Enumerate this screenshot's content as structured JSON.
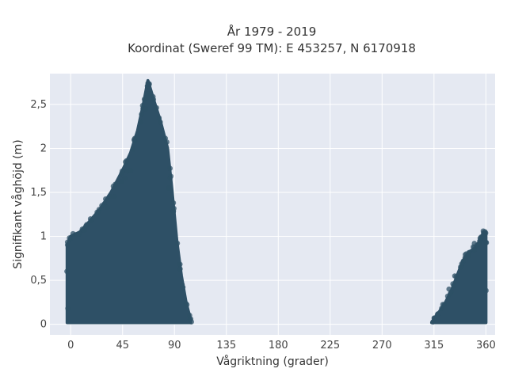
{
  "chart_data": {
    "type": "scatter",
    "title": [
      "År 1979 - 2019",
      "Koordinat (Sweref 99 TM): E 453257, N 6170918"
    ],
    "xlabel": "Vågriktning (grader)",
    "ylabel": "Signifikant våghöjd (m)",
    "xlim": [
      -18,
      368
    ],
    "ylim": [
      -0.12,
      2.85
    ],
    "grid": true,
    "xticks": [
      0,
      45,
      90,
      135,
      180,
      225,
      270,
      315,
      360
    ],
    "xtick_labels": [
      "0",
      "45",
      "90",
      "135",
      "180",
      "225",
      "270",
      "315",
      "360"
    ],
    "yticks": [
      0,
      0.5,
      1,
      1.5,
      2,
      2.5
    ],
    "ytick_labels": [
      "0",
      "0,5",
      "1",
      "1,5",
      "2",
      "2,5"
    ],
    "marker_color": "#2e5066",
    "background_color": "#e5e9f2",
    "clusters": [
      {
        "envelope": [
          [
            -3,
            0.02
          ],
          [
            -3,
            0.9
          ],
          [
            0,
            1.0
          ],
          [
            8,
            1.05
          ],
          [
            15,
            1.15
          ],
          [
            25,
            1.3
          ],
          [
            35,
            1.5
          ],
          [
            45,
            1.75
          ],
          [
            52,
            1.95
          ],
          [
            58,
            2.2
          ],
          [
            63,
            2.5
          ],
          [
            67,
            2.77
          ],
          [
            72,
            2.55
          ],
          [
            78,
            2.3
          ],
          [
            84,
            2.0
          ],
          [
            88,
            1.5
          ],
          [
            92,
            0.95
          ],
          [
            96,
            0.55
          ],
          [
            100,
            0.25
          ],
          [
            104,
            0.05
          ],
          [
            104,
            0.02
          ]
        ],
        "outliers": [
          [
            65,
            2.45
          ],
          [
            66,
            2.58
          ],
          [
            67,
            2.74
          ],
          [
            68,
            2.62
          ],
          [
            55,
            2.1
          ],
          [
            54,
            1.99
          ],
          [
            49,
            1.74
          ],
          [
            52,
            1.75
          ],
          [
            47,
            1.66
          ],
          [
            38,
            1.45
          ],
          [
            32,
            1.33
          ],
          [
            24,
            1.28
          ],
          [
            18,
            1.18
          ],
          [
            12,
            1.07
          ],
          [
            6,
            1.02
          ],
          [
            27,
            1.35
          ],
          [
            44,
            1.62
          ],
          [
            61,
            2.3
          ],
          [
            85,
            1.55
          ],
          [
            89,
            1.28
          ]
        ]
      },
      {
        "envelope": [
          [
            313,
            0.02
          ],
          [
            316,
            0.08
          ],
          [
            320,
            0.15
          ],
          [
            325,
            0.25
          ],
          [
            330,
            0.38
          ],
          [
            335,
            0.55
          ],
          [
            340,
            0.72
          ],
          [
            345,
            0.82
          ],
          [
            350,
            0.86
          ],
          [
            355,
            0.95
          ],
          [
            358,
            1.05
          ],
          [
            360,
            1.05
          ],
          [
            360,
            0.02
          ]
        ],
        "outliers": [
          [
            358,
            1.04
          ],
          [
            359,
            1.02
          ],
          [
            349,
            0.88
          ],
          [
            350,
            0.92
          ],
          [
            345,
            0.78
          ],
          [
            338,
            0.65
          ],
          [
            333,
            0.55
          ],
          [
            328,
            0.4
          ],
          [
            355,
            0.98
          ],
          [
            357,
            1.0
          ]
        ]
      }
    ]
  }
}
